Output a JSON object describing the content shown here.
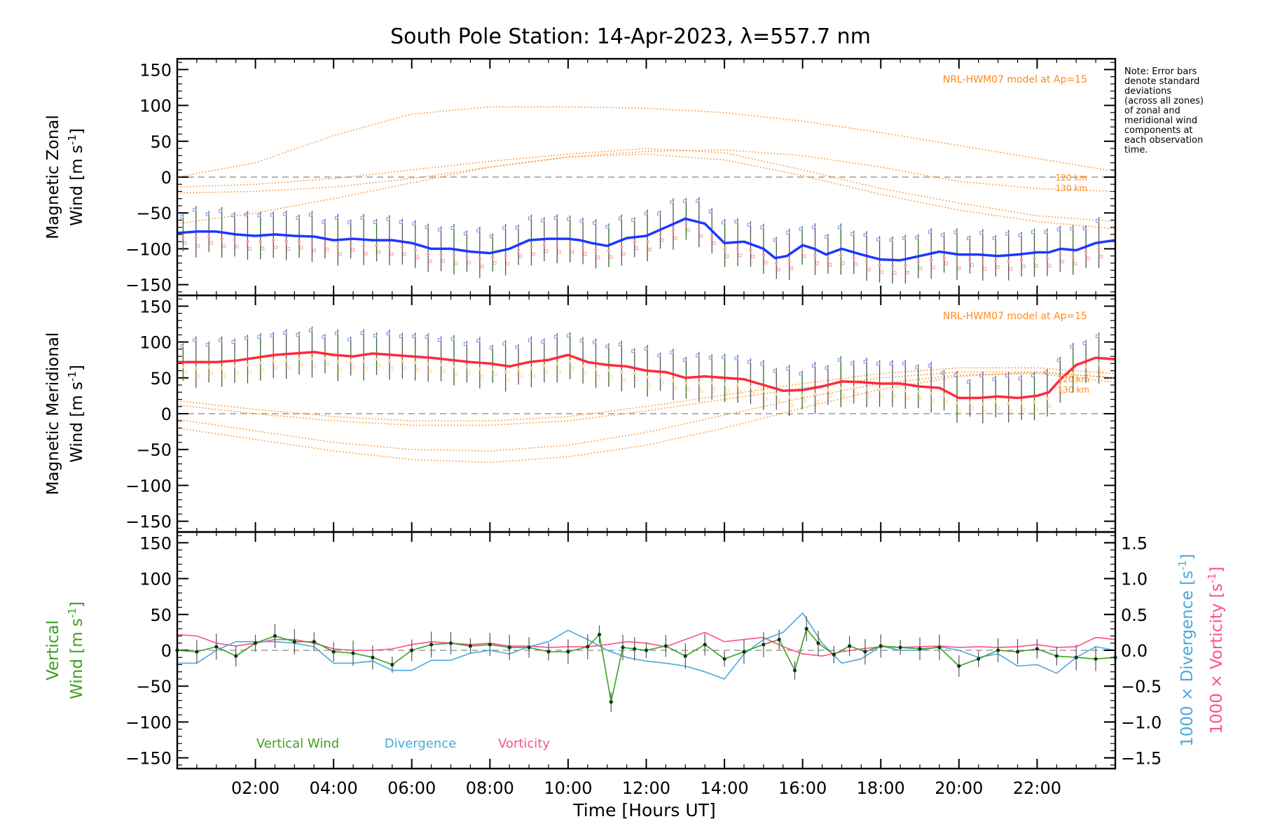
{
  "title": "South Pole Station: 14-Apr-2023, λ=557.7 nm",
  "note_lines": [
    "Note: Error bars",
    "denote standard",
    "deviations",
    "(across all zones)",
    "of zonal and",
    "meridional wind",
    "components at",
    "each observation",
    "time."
  ],
  "colors": {
    "zonal": "#1f36ff",
    "meridional": "#ff2a3a",
    "model": "#ff8a1f",
    "vertical": "#3ca01e",
    "divergence": "#4aa8dc",
    "vorticity": "#ff4f8a",
    "zone_purple": "#8a8ae0",
    "zone_pink": "#ff9a9a",
    "zone_yellow": "#ffd690",
    "errorbar": "#555555"
  },
  "chart_data": [
    {
      "type": "line",
      "id": "zonal",
      "ylabel_line1": "Magnetic Zonal",
      "ylabel_line2": "Wind",
      "ylabel_units": "[m s",
      "ylabel_sup": "-1",
      "ylabel_close": "]",
      "ylim": [
        -165,
        165
      ],
      "yticks": [
        "150",
        "100",
        "50",
        "0",
        "−50",
        "−100",
        "−150"
      ],
      "model_label": "NRL-HWM07 model at Ap=15",
      "model_alt_labels": [
        "120 km",
        "130 km"
      ],
      "series": [
        {
          "name": "Zonal wind",
          "x": [
            0.0,
            0.5,
            1.0,
            1.5,
            2.0,
            2.5,
            3.0,
            3.5,
            4.0,
            4.5,
            5.0,
            5.5,
            6.0,
            6.5,
            7.0,
            7.5,
            8.0,
            8.5,
            9.0,
            9.5,
            10.0,
            10.3,
            10.6,
            11.0,
            11.5,
            12.0,
            12.5,
            13.0,
            13.5,
            14.0,
            14.5,
            15.0,
            15.3,
            15.6,
            16.0,
            16.3,
            16.6,
            17.0,
            17.5,
            18.0,
            18.5,
            19.0,
            19.5,
            20.0,
            20.5,
            21.0,
            21.5,
            22.0,
            22.3,
            22.6,
            23.0,
            23.5,
            24.0
          ],
          "y": [
            -78,
            -76,
            -76,
            -80,
            -82,
            -80,
            -82,
            -83,
            -88,
            -86,
            -88,
            -88,
            -92,
            -100,
            -100,
            -104,
            -106,
            -100,
            -88,
            -86,
            -86,
            -88,
            -92,
            -96,
            -85,
            -82,
            -70,
            -58,
            -65,
            -92,
            -90,
            -100,
            -113,
            -110,
            -95,
            -100,
            -108,
            -100,
            -108,
            -115,
            -116,
            -110,
            -104,
            -108,
            -108,
            -110,
            -108,
            -105,
            -105,
            -100,
            -102,
            -92,
            -88
          ]
        }
      ],
      "model_curves": [
        {
          "x": [
            0,
            2,
            4,
            6,
            8,
            10,
            12,
            14,
            16,
            18,
            20,
            22,
            24
          ],
          "y": [
            0,
            20,
            58,
            88,
            98,
            98,
            96,
            90,
            78,
            62,
            44,
            26,
            8
          ]
        },
        {
          "x": [
            0,
            2,
            4,
            6,
            8,
            10,
            12,
            14,
            16,
            18,
            20,
            22,
            24
          ],
          "y": [
            -22,
            -20,
            -14,
            -2,
            14,
            28,
            36,
            38,
            30,
            14,
            -6,
            -16,
            -20
          ]
        },
        {
          "x": [
            0,
            2,
            4,
            6,
            8,
            10,
            12,
            14,
            16,
            18,
            20,
            22,
            24
          ],
          "y": [
            -14,
            -10,
            -2,
            10,
            22,
            32,
            40,
            34,
            10,
            -16,
            -36,
            -54,
            -62
          ]
        },
        {
          "x": [
            0,
            2,
            4,
            6,
            8,
            10,
            12,
            14,
            16,
            18,
            20,
            22,
            24
          ],
          "y": [
            -65,
            -50,
            -30,
            -8,
            14,
            28,
            32,
            24,
            2,
            -24,
            -46,
            -62,
            -72
          ]
        }
      ]
    },
    {
      "type": "line",
      "id": "meridional",
      "ylabel_line1": "Magnetic Meridional",
      "ylabel_line2": "Wind",
      "ylabel_units": "[m s",
      "ylabel_sup": "-1",
      "ylabel_close": "]",
      "ylim": [
        -165,
        165
      ],
      "yticks": [
        "150",
        "100",
        "50",
        "0",
        "−50",
        "−100",
        "−150"
      ],
      "model_label": "NRL-HWM07 model at Ap=15",
      "model_alt_labels": [
        "120 km",
        "130 km"
      ],
      "series": [
        {
          "name": "Meridional wind",
          "x": [
            0.0,
            0.5,
            1.0,
            1.5,
            2.0,
            2.5,
            3.0,
            3.5,
            4.0,
            4.5,
            5.0,
            5.5,
            6.0,
            6.5,
            7.0,
            7.5,
            8.0,
            8.5,
            9.0,
            9.5,
            10.0,
            10.5,
            11.0,
            11.5,
            12.0,
            12.5,
            13.0,
            13.5,
            14.0,
            14.5,
            15.0,
            15.5,
            16.0,
            16.5,
            17.0,
            17.5,
            18.0,
            18.5,
            19.0,
            19.5,
            20.0,
            20.5,
            21.0,
            21.5,
            22.0,
            22.3,
            22.6,
            23.0,
            23.5,
            24.0
          ],
          "y": [
            72,
            72,
            72,
            74,
            78,
            82,
            84,
            86,
            82,
            80,
            84,
            82,
            80,
            78,
            75,
            72,
            70,
            66,
            72,
            75,
            82,
            72,
            68,
            66,
            60,
            58,
            50,
            52,
            50,
            48,
            40,
            32,
            33,
            38,
            45,
            44,
            42,
            42,
            38,
            36,
            22,
            22,
            24,
            22,
            25,
            30,
            48,
            68,
            78,
            76
          ]
        }
      ],
      "model_curves": [
        {
          "x": [
            0,
            2,
            4,
            6,
            8,
            10,
            12,
            14,
            16,
            18,
            20,
            22,
            24
          ],
          "y": [
            -20,
            -36,
            -52,
            -64,
            -68,
            -60,
            -44,
            -20,
            8,
            34,
            52,
            58,
            50
          ]
        },
        {
          "x": [
            0,
            2,
            4,
            6,
            8,
            10,
            12,
            14,
            16,
            18,
            20,
            22,
            24
          ],
          "y": [
            -8,
            -24,
            -40,
            -50,
            -52,
            -44,
            -26,
            -2,
            22,
            42,
            54,
            56,
            44
          ]
        },
        {
          "x": [
            0,
            2,
            4,
            6,
            8,
            10,
            12,
            14,
            16,
            18,
            20,
            22,
            24
          ],
          "y": [
            12,
            0,
            -10,
            -16,
            -16,
            -10,
            4,
            20,
            36,
            50,
            58,
            58,
            50
          ]
        },
        {
          "x": [
            0,
            2,
            4,
            6,
            8,
            10,
            12,
            14,
            16,
            18,
            20,
            22,
            24
          ],
          "y": [
            18,
            6,
            -4,
            -10,
            -10,
            -4,
            10,
            26,
            42,
            56,
            64,
            64,
            56
          ]
        }
      ]
    },
    {
      "type": "line",
      "id": "vertical",
      "ylabel_line1": "Vertical",
      "ylabel_line2": "Wind",
      "ylabel_units": "[m s",
      "ylabel_sup": "-1",
      "ylabel_close": "]",
      "ylim": [
        -165,
        165
      ],
      "yticks": [
        "150",
        "100",
        "50",
        "0",
        "−50",
        "−100",
        "−150"
      ],
      "y2label_div": "1000 × Divergence [s",
      "y2label_vor": "1000 × Vorticity [s",
      "y2_sup": "-1",
      "y2_close": "]",
      "y2lim": [
        -1.65,
        1.65
      ],
      "y2ticks": [
        "1.5",
        "1.0",
        "0.5",
        "0.0",
        "−0.5",
        "−1.0",
        "−1.5"
      ],
      "legend": [
        "Vertical Wind",
        "Divergence",
        "Vorticity"
      ],
      "series": [
        {
          "name": "Vertical Wind",
          "x": [
            0.0,
            0.5,
            1.0,
            1.5,
            2.0,
            2.5,
            3.0,
            3.5,
            4.0,
            4.5,
            5.0,
            5.5,
            6.0,
            6.5,
            7.0,
            7.5,
            8.0,
            8.5,
            9.0,
            9.5,
            10.0,
            10.5,
            10.8,
            11.1,
            11.4,
            11.7,
            12.0,
            12.5,
            13.0,
            13.5,
            14.0,
            14.5,
            15.0,
            15.4,
            15.8,
            16.1,
            16.4,
            16.8,
            17.2,
            17.6,
            18.0,
            18.5,
            19.0,
            19.5,
            20.0,
            20.5,
            21.0,
            21.5,
            22.0,
            22.5,
            23.0,
            23.5,
            24.0
          ],
          "y": [
            0,
            -2,
            5,
            -8,
            10,
            20,
            12,
            12,
            -2,
            -4,
            -10,
            -20,
            0,
            8,
            10,
            6,
            8,
            4,
            4,
            -2,
            -2,
            5,
            22,
            -72,
            4,
            2,
            0,
            6,
            -8,
            8,
            -12,
            -2,
            8,
            15,
            -28,
            30,
            10,
            -6,
            6,
            -2,
            6,
            4,
            2,
            4,
            -22,
            -12,
            0,
            -2,
            2,
            -8,
            -10,
            -12,
            -10
          ]
        },
        {
          "name": "Divergence",
          "x": [
            0,
            0.5,
            1,
            1.5,
            2,
            2.5,
            3,
            3.5,
            4,
            4.5,
            5,
            5.5,
            6,
            6.5,
            7,
            7.5,
            8,
            8.5,
            9,
            9.5,
            10,
            10.5,
            11,
            11.5,
            12,
            12.5,
            13,
            13.5,
            14,
            14.5,
            15,
            15.5,
            16,
            16.5,
            17,
            17.5,
            18,
            18.5,
            19,
            19.5,
            20,
            20.5,
            21,
            21.5,
            22,
            22.5,
            23,
            23.5,
            24
          ],
          "y": [
            -0.18,
            -0.18,
            0.0,
            0.12,
            0.12,
            0.12,
            0.1,
            0.05,
            -0.18,
            -0.18,
            -0.15,
            -0.28,
            -0.28,
            -0.14,
            -0.14,
            -0.04,
            0.0,
            -0.05,
            0.05,
            0.12,
            0.28,
            0.15,
            0.0,
            -0.1,
            -0.15,
            -0.18,
            -0.22,
            -0.3,
            -0.4,
            -0.05,
            0.15,
            0.25,
            0.52,
            0.1,
            -0.18,
            -0.12,
            0.06,
            0.0,
            0.0,
            0.05,
            0.0,
            -0.1,
            -0.05,
            -0.22,
            -0.2,
            -0.32,
            -0.1,
            0.05,
            0.0
          ]
        },
        {
          "name": "Vorticity",
          "x": [
            0,
            0.5,
            1,
            1.5,
            2,
            2.5,
            3,
            3.5,
            4,
            4.5,
            5,
            5.5,
            6,
            6.5,
            7,
            7.5,
            8,
            8.5,
            9,
            9.5,
            10,
            10.5,
            11,
            11.5,
            12,
            12.5,
            13,
            13.5,
            14,
            14.5,
            15,
            15.5,
            16,
            16.5,
            17,
            17.5,
            18,
            18.5,
            19,
            19.5,
            20,
            20.5,
            21,
            21.5,
            22,
            22.5,
            23,
            23.5,
            24
          ],
          "y": [
            0.22,
            0.2,
            0.1,
            0.06,
            0.1,
            0.15,
            0.15,
            0.1,
            0.02,
            0.0,
            0.0,
            0.02,
            0.08,
            0.12,
            0.1,
            0.08,
            0.1,
            0.06,
            0.06,
            0.04,
            0.05,
            0.05,
            0.08,
            0.12,
            0.1,
            0.05,
            0.15,
            0.25,
            0.12,
            0.15,
            0.18,
            0.05,
            -0.05,
            -0.08,
            -0.02,
            0.02,
            0.05,
            0.04,
            0.05,
            0.06,
            0.04,
            0.05,
            0.04,
            0.05,
            0.08,
            0.04,
            0.05,
            0.18,
            0.15
          ]
        }
      ]
    }
  ],
  "xaxis": {
    "label_pre": "Time ",
    "label_open": "[",
    "label_mid": "Hours UT",
    "label_close": "]",
    "xlim": [
      0,
      24
    ],
    "ticks": [
      "02:00",
      "04:00",
      "06:00",
      "08:00",
      "10:00",
      "12:00",
      "14:00",
      "16:00",
      "18:00",
      "20:00",
      "22:00"
    ]
  }
}
